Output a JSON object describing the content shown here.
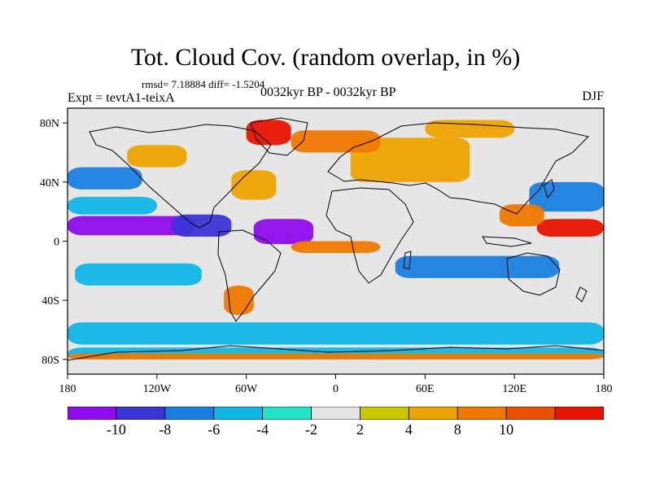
{
  "title": "Tot. Cloud Cov. (random overlap, in %)",
  "stats": "rmsd= 7.18884 diff= -1.5204",
  "experiment": "Expt = tevtA1-teixA",
  "period": "0032kyr BP - 0032kyr BP",
  "season": "DJF",
  "map": {
    "lon_range": [
      -180,
      180
    ],
    "lat_range": [
      -90,
      90
    ],
    "x_ticks": [
      {
        "value": -180,
        "label": "180"
      },
      {
        "value": -120,
        "label": "120W"
      },
      {
        "value": -60,
        "label": "60W"
      },
      {
        "value": 0,
        "label": "0"
      },
      {
        "value": 60,
        "label": "60E"
      },
      {
        "value": 120,
        "label": "120E"
      },
      {
        "value": 180,
        "label": "180"
      }
    ],
    "y_ticks": [
      {
        "value": 80,
        "label": "80N"
      },
      {
        "value": 40,
        "label": "40N"
      },
      {
        "value": 0,
        "label": "0"
      },
      {
        "value": -40,
        "label": "40S"
      },
      {
        "value": -80,
        "label": "80S"
      }
    ],
    "background_class": "-2 to 2",
    "anomaly_regions": [
      {
        "name": "tropical-pacific-north",
        "lon": [
          -180,
          -95
        ],
        "lat": [
          4,
          17
        ],
        "level": -10
      },
      {
        "name": "atlantic-equatorial",
        "lon": [
          -55,
          -15
        ],
        "lat": [
          -2,
          15
        ],
        "level": -10
      },
      {
        "name": "central-america",
        "lon": [
          -110,
          -70
        ],
        "lat": [
          3,
          18
        ],
        "level": -8
      },
      {
        "name": "north-pacific",
        "lon": [
          -180,
          -130
        ],
        "lat": [
          35,
          50
        ],
        "level": -6
      },
      {
        "name": "mid-latitude-pacific",
        "lon": [
          -180,
          -120
        ],
        "lat": [
          18,
          30
        ],
        "level": -4
      },
      {
        "name": "south-pacific",
        "lon": [
          -175,
          -90
        ],
        "lat": [
          -30,
          -15
        ],
        "level": -4
      },
      {
        "name": "southern-ocean",
        "lon": [
          -180,
          180
        ],
        "lat": [
          -70,
          -55
        ],
        "level": -4
      },
      {
        "name": "antarctic-coast",
        "lon": [
          -180,
          180
        ],
        "lat": [
          -80,
          -72
        ],
        "level": -4
      },
      {
        "name": "indian-ocean-south",
        "lon": [
          40,
          150
        ],
        "lat": [
          -25,
          -10
        ],
        "level": -6
      },
      {
        "name": "west-pacific",
        "lon": [
          130,
          180
        ],
        "lat": [
          20,
          40
        ],
        "level": -6
      },
      {
        "name": "equatorial-atlantic-band",
        "lon": [
          -30,
          30
        ],
        "lat": [
          -8,
          0
        ],
        "level": 8
      },
      {
        "name": "north-africa-asia",
        "lon": [
          10,
          90
        ],
        "lat": [
          40,
          70
        ],
        "level": 4
      },
      {
        "name": "europe-north",
        "lon": [
          -30,
          30
        ],
        "lat": [
          60,
          75
        ],
        "level": 8
      },
      {
        "name": "greenland-arctic",
        "lon": [
          -60,
          -30
        ],
        "lat": [
          65,
          82
        ],
        "level": 10
      },
      {
        "name": "north-america-west",
        "lon": [
          -140,
          -100
        ],
        "lat": [
          50,
          65
        ],
        "level": 4
      },
      {
        "name": "atlantic-north",
        "lon": [
          -70,
          -40
        ],
        "lat": [
          28,
          48
        ],
        "level": 4
      },
      {
        "name": "west-pacific-tropical",
        "lon": [
          135,
          180
        ],
        "lat": [
          3,
          15
        ],
        "level": 10
      },
      {
        "name": "east-asia",
        "lon": [
          110,
          140
        ],
        "lat": [
          10,
          25
        ],
        "level": 8
      },
      {
        "name": "antarctic-southern-band",
        "lon": [
          -180,
          180
        ],
        "lat": [
          -80,
          -76
        ],
        "level": 8
      },
      {
        "name": "south-america-south",
        "lon": [
          -75,
          -55
        ],
        "lat": [
          -50,
          -30
        ],
        "level": 8
      },
      {
        "name": "arctic-russia",
        "lon": [
          60,
          120
        ],
        "lat": [
          70,
          82
        ],
        "level": 4
      }
    ]
  },
  "colorbar": {
    "colors": [
      "#8e0ced",
      "#3c35d6",
      "#1a7fe0",
      "#11b5e8",
      "#22e3c7",
      "#e6e6e6",
      "#c8c800",
      "#eea300",
      "#f07800",
      "#e85000",
      "#e81400"
    ],
    "labels": [
      "-10",
      "-8",
      "-6",
      "-4",
      "-2",
      "2",
      "4",
      "8",
      "10"
    ]
  }
}
